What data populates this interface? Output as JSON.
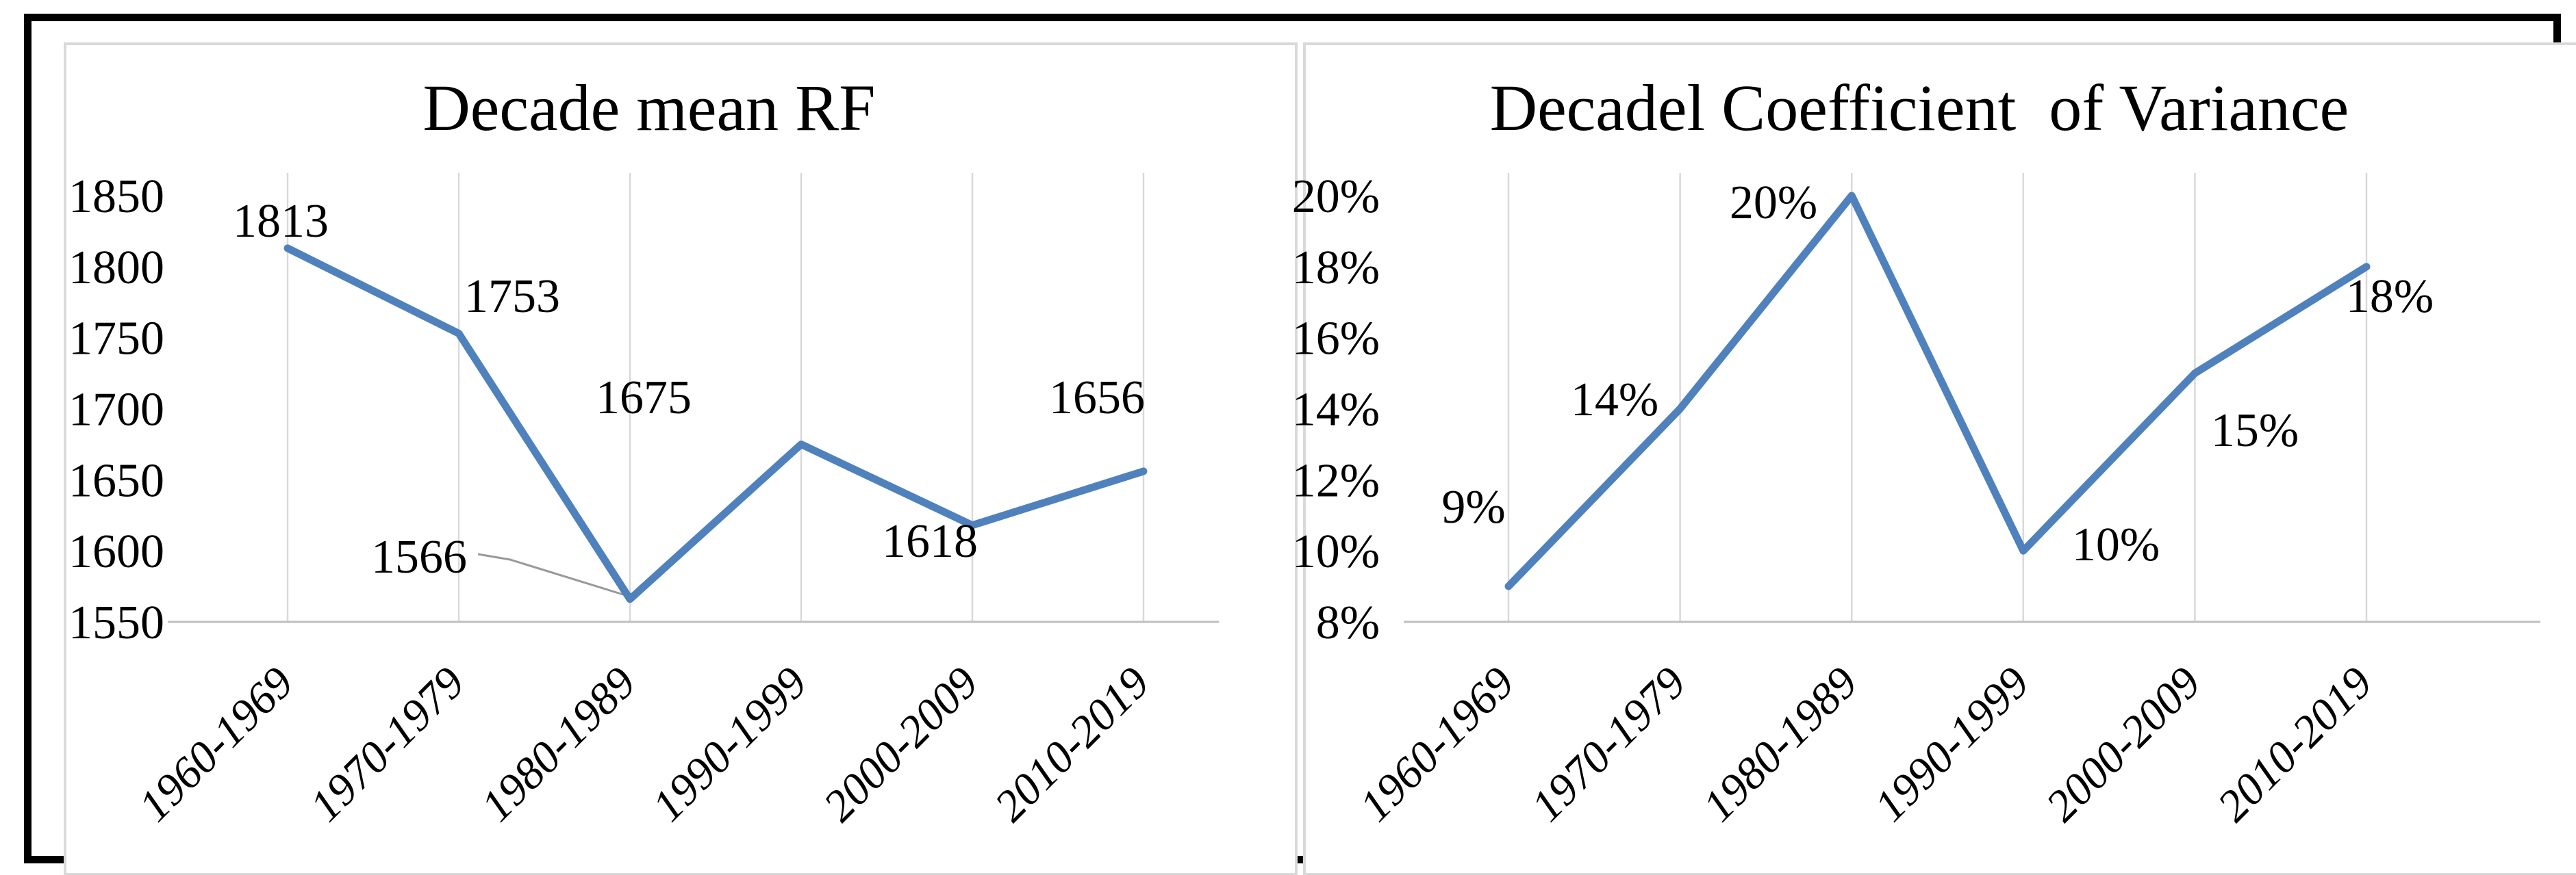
{
  "figure": {
    "background": "#ffffff",
    "frame_color": "#000000",
    "panel_border_color": "#d9d9d9"
  },
  "colors": {
    "line": "#4f81bd",
    "gridline": "#d9d9d9",
    "axis_line": "#bfbfbf",
    "leader_line": "#999999",
    "text": "#000000"
  },
  "categories": [
    "1960-1969",
    "1970-1979",
    "1980-1989",
    "1990-1999",
    "2000-2009",
    "2010-2019"
  ],
  "chart_data": [
    {
      "type": "line",
      "title": "Decade mean RF",
      "categories": [
        "1960-1969",
        "1970-1979",
        "1980-1989",
        "1990-1999",
        "2000-2009",
        "2010-2019"
      ],
      "values": [
        1813,
        1753,
        1566,
        1675,
        1618,
        1656
      ],
      "data_labels": [
        "1813",
        "1753",
        "1566",
        "1675",
        "1618",
        "1656"
      ],
      "y_tick_labels": [
        "1850",
        "1800",
        "1750",
        "1700",
        "1650",
        "1600",
        "1550"
      ],
      "ylim": [
        1550,
        1850
      ],
      "xlabel": "",
      "ylabel": "",
      "grid": "vertical-only",
      "legend": "none",
      "line_color": "#4f81bd"
    },
    {
      "type": "line",
      "title": "Decadel Coefficient  of Variance",
      "categories": [
        "1960-1969",
        "1970-1979",
        "1980-1989",
        "1990-1999",
        "2000-2009",
        "2010-2019"
      ],
      "values": [
        9,
        14,
        20,
        10,
        15,
        18
      ],
      "data_labels": [
        "9%",
        "14%",
        "20%",
        "10%",
        "15%",
        "18%"
      ],
      "y_tick_labels": [
        "20%",
        "18%",
        "16%",
        "14%",
        "12%",
        "10%",
        "8%"
      ],
      "ylim": [
        8,
        20
      ],
      "xlabel": "",
      "ylabel": "",
      "grid": "vertical-only",
      "legend": "none",
      "line_color": "#4f81bd"
    }
  ]
}
